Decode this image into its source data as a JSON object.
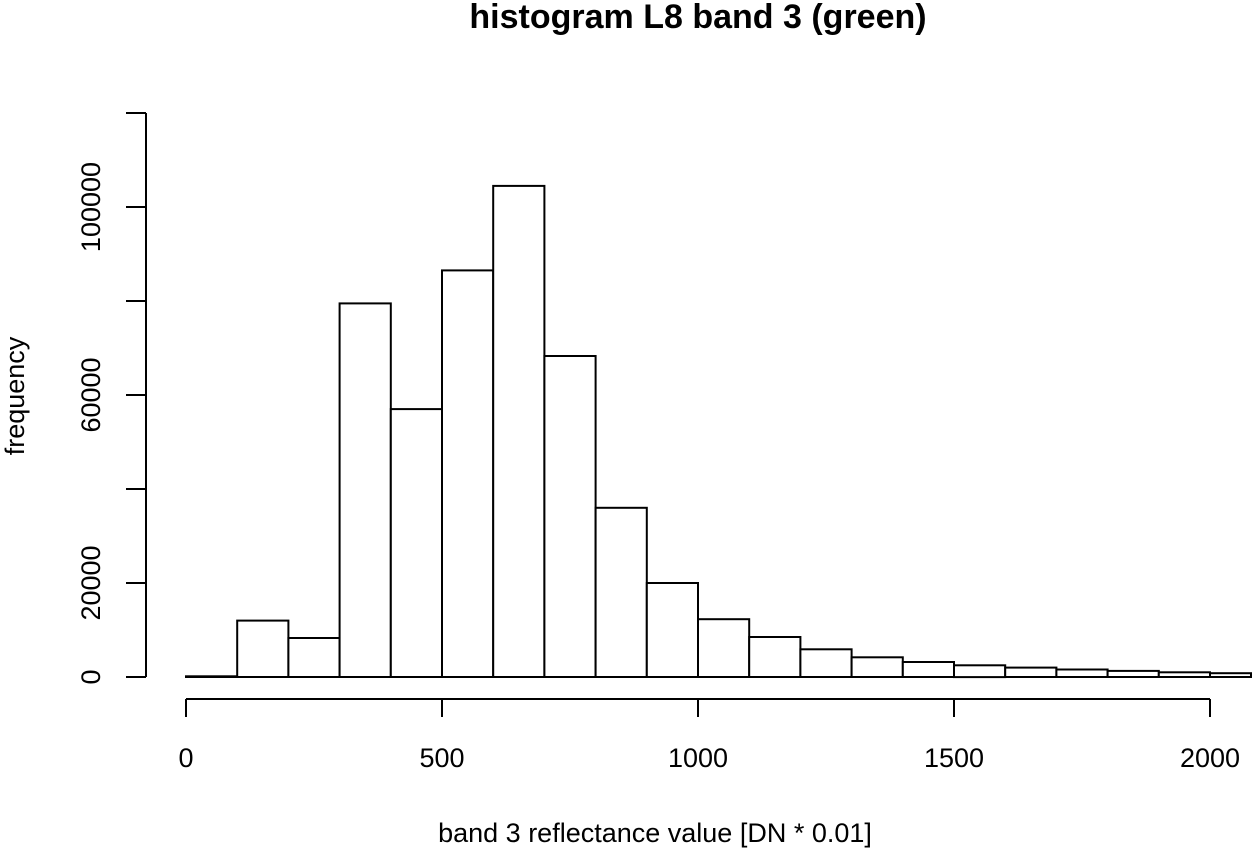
{
  "chart_data": {
    "type": "bar",
    "title": "histogram L8 band 3 (green)",
    "xlabel": "band 3 reflectance value [DN * 0.01]",
    "ylabel": "frequency",
    "bin_width": 100,
    "bin_edges": [
      0,
      100,
      200,
      300,
      400,
      500,
      600,
      700,
      800,
      900,
      1000,
      1100,
      1200,
      1300,
      1400,
      1500,
      1600,
      1700,
      1800,
      1900,
      2000,
      2100
    ],
    "values": [
      150,
      12000,
      8300,
      79500,
      57000,
      86500,
      104500,
      68300,
      36000,
      20000,
      12300,
      8500,
      5900,
      4200,
      3200,
      2500,
      2000,
      1600,
      1300,
      1000,
      800
    ],
    "xlim": [
      0,
      2100
    ],
    "ylim": [
      0,
      120000
    ],
    "x_ticks": [
      0,
      500,
      1000,
      1500,
      2000
    ],
    "x_tick_labels": [
      "0",
      "500",
      "1000",
      "1500",
      "2000"
    ],
    "y_ticks": [
      0,
      20000,
      40000,
      60000,
      80000,
      100000,
      120000
    ],
    "y_tick_labels": [
      "0",
      "20000",
      "",
      "60000",
      "",
      "100000",
      ""
    ],
    "grid": false
  }
}
